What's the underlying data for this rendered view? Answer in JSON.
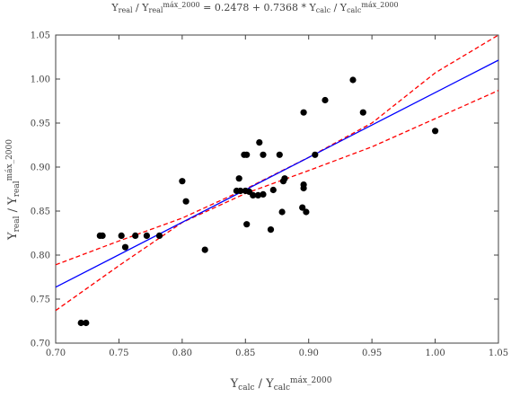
{
  "chart_data": {
    "type": "scatter",
    "title": {
      "parts": [
        {
          "text": "Y"
        },
        {
          "text": "real",
          "sub": true
        },
        {
          "text": " / Y"
        },
        {
          "text": "real",
          "sub": true
        },
        {
          "text": "máx_2000",
          "sup": true
        },
        {
          "text": " = 0.2478 + 0.7368 * Y"
        },
        {
          "text": "calc",
          "sub": true
        },
        {
          "text": " / Y"
        },
        {
          "text": "calc",
          "sub": true
        },
        {
          "text": "máx_2000",
          "sup": true
        }
      ]
    },
    "xlabel": {
      "parts": [
        {
          "text": "Y"
        },
        {
          "text": "calc",
          "sub": true
        },
        {
          "text": " / Y"
        },
        {
          "text": "calc",
          "sub": true
        },
        {
          "text": "máx_2000",
          "sup": true
        }
      ]
    },
    "ylabel": {
      "parts": [
        {
          "text": "Y"
        },
        {
          "text": "real",
          "sub": true
        },
        {
          "text": " / Y"
        },
        {
          "text": "real",
          "sub": true
        },
        {
          "text": "máx_2000",
          "sup": true
        }
      ]
    },
    "xlim": [
      0.7,
      1.05
    ],
    "ylim": [
      0.7,
      1.05
    ],
    "xticks": [
      "0.70",
      "0.75",
      "0.80",
      "0.85",
      "0.90",
      "0.95",
      "1.00",
      "1.05"
    ],
    "yticks": [
      "0.70",
      "0.75",
      "0.80",
      "0.85",
      "0.90",
      "0.95",
      "1.00",
      "1.05"
    ],
    "grid": false,
    "points": [
      {
        "x": 0.72,
        "y": 0.723
      },
      {
        "x": 0.724,
        "y": 0.723
      },
      {
        "x": 0.735,
        "y": 0.822
      },
      {
        "x": 0.737,
        "y": 0.822
      },
      {
        "x": 0.752,
        "y": 0.822
      },
      {
        "x": 0.755,
        "y": 0.809
      },
      {
        "x": 0.763,
        "y": 0.822
      },
      {
        "x": 0.772,
        "y": 0.822
      },
      {
        "x": 0.782,
        "y": 0.822
      },
      {
        "x": 0.8,
        "y": 0.884
      },
      {
        "x": 0.803,
        "y": 0.861
      },
      {
        "x": 0.818,
        "y": 0.806
      },
      {
        "x": 0.843,
        "y": 0.873
      },
      {
        "x": 0.845,
        "y": 0.887
      },
      {
        "x": 0.846,
        "y": 0.873
      },
      {
        "x": 0.849,
        "y": 0.914
      },
      {
        "x": 0.85,
        "y": 0.873
      },
      {
        "x": 0.851,
        "y": 0.914
      },
      {
        "x": 0.851,
        "y": 0.835
      },
      {
        "x": 0.853,
        "y": 0.872
      },
      {
        "x": 0.856,
        "y": 0.868
      },
      {
        "x": 0.86,
        "y": 0.868
      },
      {
        "x": 0.861,
        "y": 0.928
      },
      {
        "x": 0.864,
        "y": 0.914
      },
      {
        "x": 0.864,
        "y": 0.869
      },
      {
        "x": 0.87,
        "y": 0.829
      },
      {
        "x": 0.872,
        "y": 0.874
      },
      {
        "x": 0.877,
        "y": 0.914
      },
      {
        "x": 0.879,
        "y": 0.849
      },
      {
        "x": 0.88,
        "y": 0.884
      },
      {
        "x": 0.881,
        "y": 0.887
      },
      {
        "x": 0.895,
        "y": 0.854
      },
      {
        "x": 0.896,
        "y": 0.88
      },
      {
        "x": 0.896,
        "y": 0.876
      },
      {
        "x": 0.896,
        "y": 0.962
      },
      {
        "x": 0.898,
        "y": 0.849
      },
      {
        "x": 0.905,
        "y": 0.914
      },
      {
        "x": 0.913,
        "y": 0.976
      },
      {
        "x": 0.935,
        "y": 0.999
      },
      {
        "x": 0.943,
        "y": 0.962
      },
      {
        "x": 1.0,
        "y": 0.941
      }
    ],
    "fit": {
      "intercept": 0.2478,
      "slope": 0.7368,
      "color": "#0000ff"
    },
    "confidence_band": {
      "color": "#ff0000",
      "lower": [
        [
          0.7,
          0.737
        ],
        [
          0.75,
          0.788
        ],
        [
          0.8,
          0.837
        ],
        [
          0.85,
          0.87
        ],
        [
          0.9,
          0.896
        ],
        [
          0.95,
          0.923
        ],
        [
          1.0,
          0.955
        ],
        [
          1.05,
          0.987
        ]
      ],
      "upper": [
        [
          0.7,
          0.789
        ],
        [
          0.75,
          0.816
        ],
        [
          0.8,
          0.842
        ],
        [
          0.85,
          0.875
        ],
        [
          0.9,
          0.911
        ],
        [
          0.95,
          0.95
        ],
        [
          1.0,
          1.007
        ],
        [
          1.05,
          1.05
        ]
      ]
    },
    "marker_color": "#000000",
    "axis_color": "#404040"
  }
}
